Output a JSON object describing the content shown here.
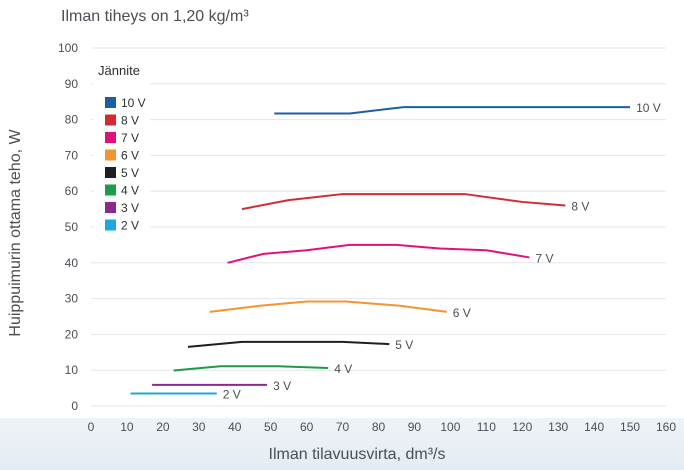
{
  "chart_data": {
    "type": "line",
    "title": "Ilman tiheys on 1,20 kg/m³",
    "xlabel": "Ilman tilavuusvirta, dm³/s",
    "ylabel": "Huippuimurin ottama teho, W",
    "xlim": [
      0,
      160
    ],
    "ylim": [
      0,
      100
    ],
    "x_ticks": [
      0,
      10,
      20,
      30,
      40,
      50,
      60,
      70,
      80,
      90,
      100,
      110,
      120,
      130,
      140,
      150,
      160
    ],
    "y_ticks": [
      0,
      10,
      20,
      30,
      40,
      50,
      60,
      70,
      80,
      90,
      100
    ],
    "grid": "horizontal",
    "legend_title": "Jännite",
    "legend_position": "top-left",
    "series": [
      {
        "name": "10 V",
        "color": "#1d5fa3",
        "x": [
          51,
          61,
          72,
          87,
          150
        ],
        "y": [
          81.7,
          81.7,
          81.7,
          83.5,
          83.5
        ]
      },
      {
        "name": "8 V",
        "color": "#d42b33",
        "x": [
          42,
          55,
          70,
          85,
          104,
          120,
          132
        ],
        "y": [
          55,
          57.5,
          59.2,
          59.2,
          59.2,
          57,
          56
        ]
      },
      {
        "name": "7 V",
        "color": "#e0127a",
        "x": [
          38,
          48,
          60,
          72,
          85,
          97,
          110,
          122
        ],
        "y": [
          40,
          42.5,
          43.5,
          45,
          45,
          44,
          43.5,
          41.5
        ]
      },
      {
        "name": "6 V",
        "color": "#ef9631",
        "x": [
          33,
          47,
          60,
          71,
          86,
          99
        ],
        "y": [
          26.3,
          28,
          29.2,
          29.2,
          28,
          26.3
        ]
      },
      {
        "name": "5 V",
        "color": "#1f1f1f",
        "x": [
          27,
          42,
          56,
          70,
          83
        ],
        "y": [
          16.5,
          17.9,
          17.9,
          17.9,
          17.3
        ]
      },
      {
        "name": "4 V",
        "color": "#1c9b48",
        "x": [
          23,
          36,
          52,
          66
        ],
        "y": [
          9.9,
          11.1,
          11.1,
          10.6
        ]
      },
      {
        "name": "3 V",
        "color": "#8a2a8e",
        "x": [
          17,
          33,
          49
        ],
        "y": [
          5.9,
          5.9,
          5.9
        ]
      },
      {
        "name": "2 V",
        "color": "#1da8df",
        "x": [
          11,
          24,
          35
        ],
        "y": [
          3.5,
          3.5,
          3.5
        ]
      }
    ]
  }
}
